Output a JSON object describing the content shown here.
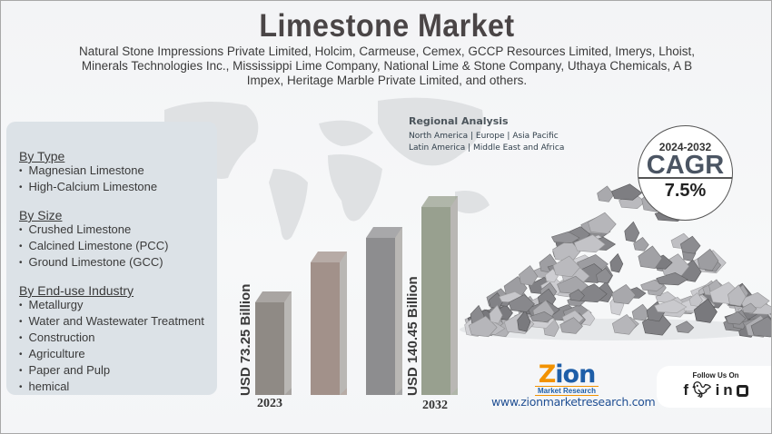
{
  "title": "Limestone Market",
  "subtitle": "Natural Stone Impressions Private Limited, Holcim, Carmeuse, Cemex, GCCP Resources Limited, Imerys, Lhoist, Minerals Technologies Inc., Mississippi Lime Company, National Lime & Stone Company, Uthaya Chemicals, A B Impex, Heritage Marble Private Limited, and others.",
  "segments": [
    {
      "heading": "By Type",
      "items": [
        "Magnesian Limestone",
        "High-Calcium Limestone"
      ]
    },
    {
      "heading": "By Size",
      "items": [
        "Crushed Limestone",
        "Calcined Limestone (PCC)",
        "Ground Limestone (GCC)"
      ]
    },
    {
      "heading": "By End-use Industry",
      "items": [
        "Metallurgy",
        "Water and Wastewater Treatment",
        "Construction",
        "Agriculture",
        "Paper and Pulp",
        "hemical"
      ]
    }
  ],
  "regional": {
    "title": "Regional Analysis",
    "line1": "North America | Europe | Asia Pacific",
    "line2": "Latin America | Middle East and Africa"
  },
  "bars": {
    "start": {
      "year": "2023",
      "label": "USD 73.25 Billion",
      "value": 73.25
    },
    "end": {
      "year": "2032",
      "label": "USD 140.45 Billion",
      "value": 140.45
    },
    "colors": [
      "#8f8a85",
      "#a2918a",
      "#8d8d8f",
      "#98a08f"
    ]
  },
  "cagr": {
    "period": "2024-2032",
    "label": "CAGR",
    "value": "7.5%"
  },
  "brand": {
    "logo_text": "Zion",
    "logo_sub": "Market Research",
    "url": "www.zionmarketresearch.com",
    "blue": "#1e5ea8",
    "orange": "#f29200"
  },
  "social": {
    "title": "Follow Us On",
    "icons": [
      "facebook-icon",
      "twitter-icon",
      "linkedin-icon",
      "instagram-icon"
    ]
  }
}
